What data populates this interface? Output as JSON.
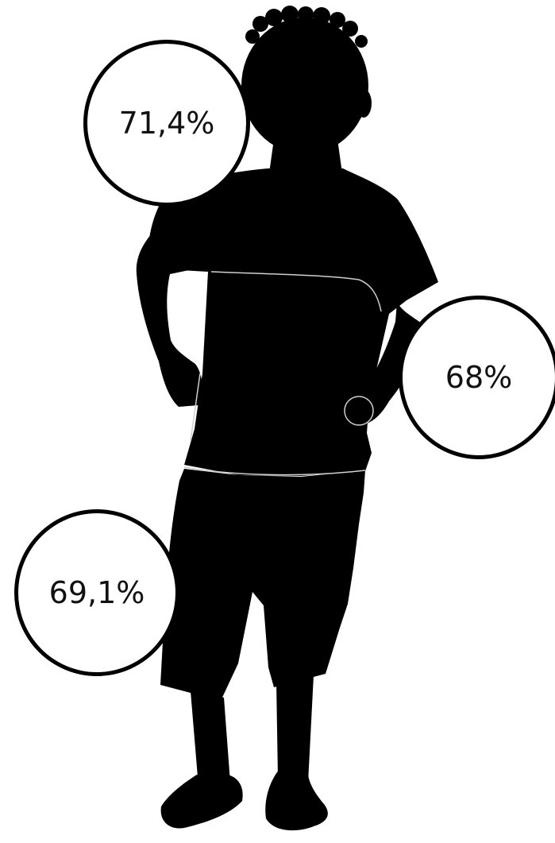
{
  "labels": {
    "head": "71,4%",
    "trunk": "68%",
    "legs": "69,1%"
  },
  "colors": {
    "silhouette": "#000000",
    "background": "#ffffff",
    "segment_lines": "#cfcfcf"
  },
  "icons": {
    "figure": "child-silhouette"
  }
}
